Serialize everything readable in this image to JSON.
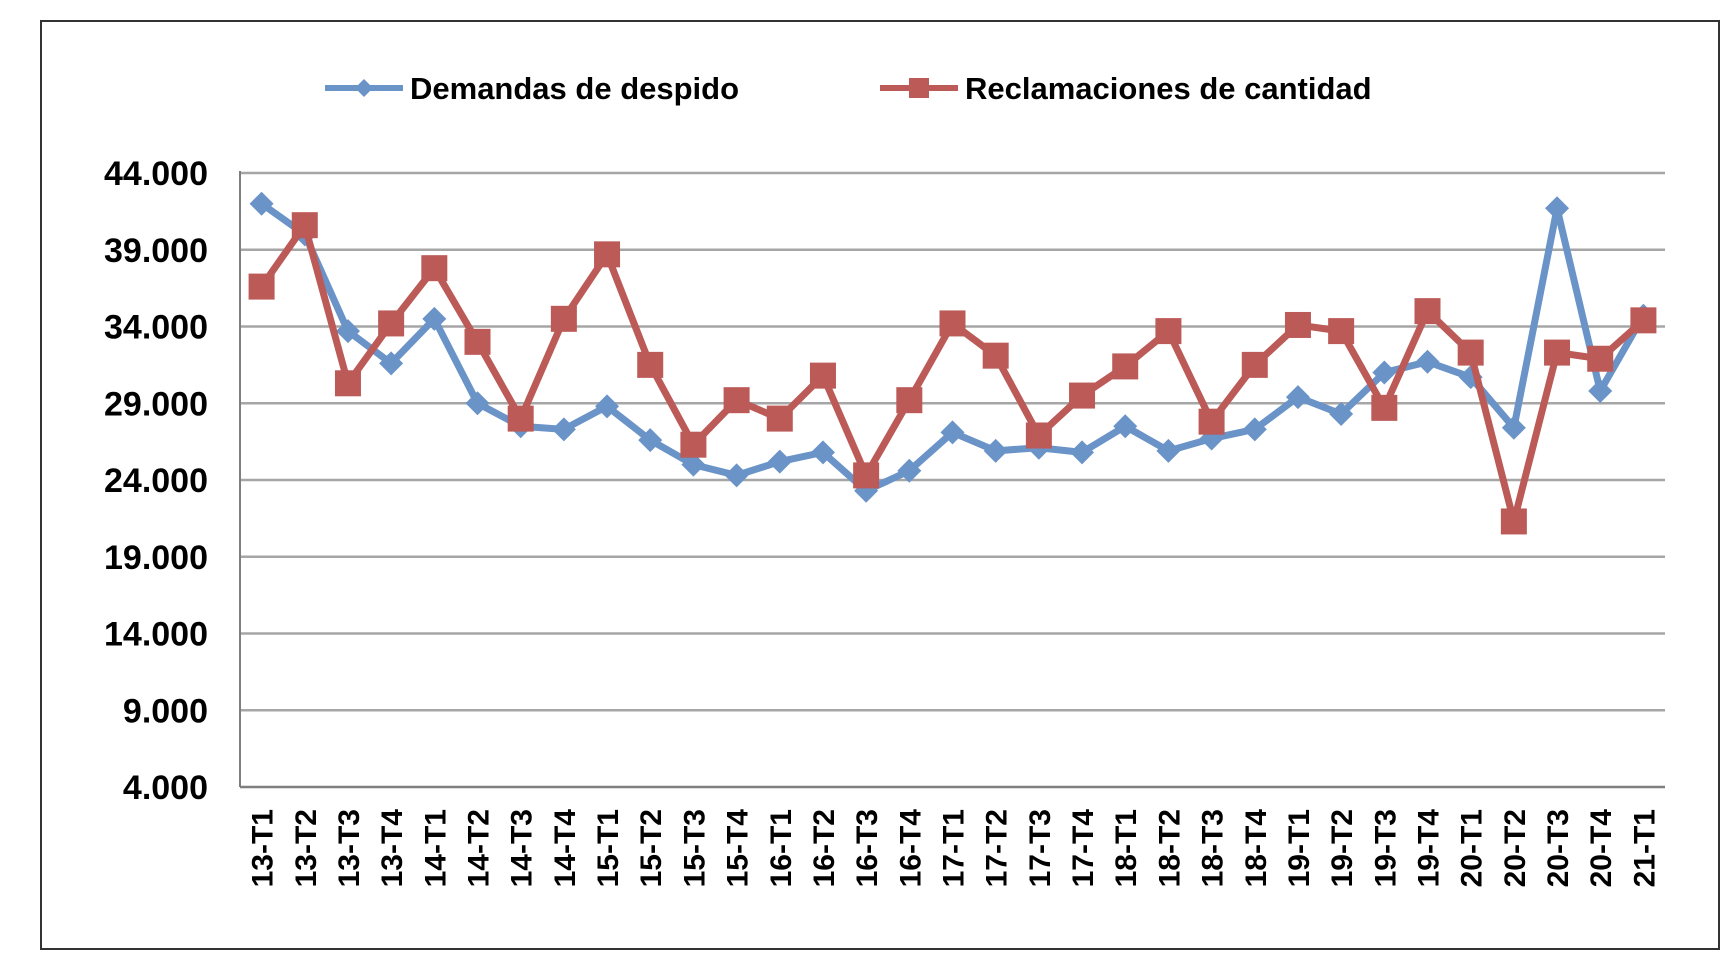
{
  "chart_data": {
    "type": "line",
    "title": "",
    "xlabel": "",
    "ylabel": "",
    "ylim": [
      4000,
      44000
    ],
    "y_ticks": [
      4000,
      9000,
      14000,
      19000,
      24000,
      29000,
      34000,
      39000,
      44000
    ],
    "y_tick_labels": [
      "4.000",
      "9.000",
      "14.000",
      "19.000",
      "24.000",
      "29.000",
      "34.000",
      "39.000",
      "44.000"
    ],
    "grid": true,
    "legend_position": "top",
    "categories": [
      "13-T1",
      "13-T2",
      "13-T3",
      "13-T4",
      "14-T1",
      "14-T2",
      "14-T3",
      "14-T4",
      "15-T1",
      "15-T2",
      "15-T3",
      "15-T4",
      "16-T1",
      "16-T2",
      "16-T3",
      "16-T4",
      "17-T1",
      "17-T2",
      "17-T3",
      "17-T4",
      "18-T1",
      "18-T2",
      "18-T3",
      "18-T4",
      "19-T1",
      "19-T2",
      "19-T3",
      "19-T4",
      "20-T1",
      "20-T2",
      "20-T3",
      "20-T4",
      "21-T1"
    ],
    "series": [
      {
        "name": "Demandas de despido",
        "color": "#6a93c8",
        "marker": "diamond",
        "values": [
          42000,
          40000,
          33700,
          31600,
          34500,
          29000,
          27500,
          27300,
          28800,
          26600,
          25000,
          24300,
          25200,
          25800,
          23300,
          24600,
          27100,
          25900,
          26100,
          25800,
          27500,
          25900,
          26700,
          27300,
          29400,
          28300,
          31000,
          31700,
          30700,
          27400,
          41700,
          29800,
          34700
        ]
      },
      {
        "name": "Reclamaciones de cantidad",
        "color": "#bb5a57",
        "marker": "square",
        "values": [
          36600,
          40600,
          30300,
          34200,
          37800,
          33000,
          28000,
          34500,
          38700,
          31500,
          26300,
          29200,
          28000,
          30800,
          24300,
          29200,
          34200,
          32100,
          26900,
          29500,
          31400,
          33700,
          27800,
          31500,
          34100,
          33700,
          28700,
          35000,
          32300,
          21300,
          32300,
          31900,
          34400
        ]
      }
    ]
  }
}
